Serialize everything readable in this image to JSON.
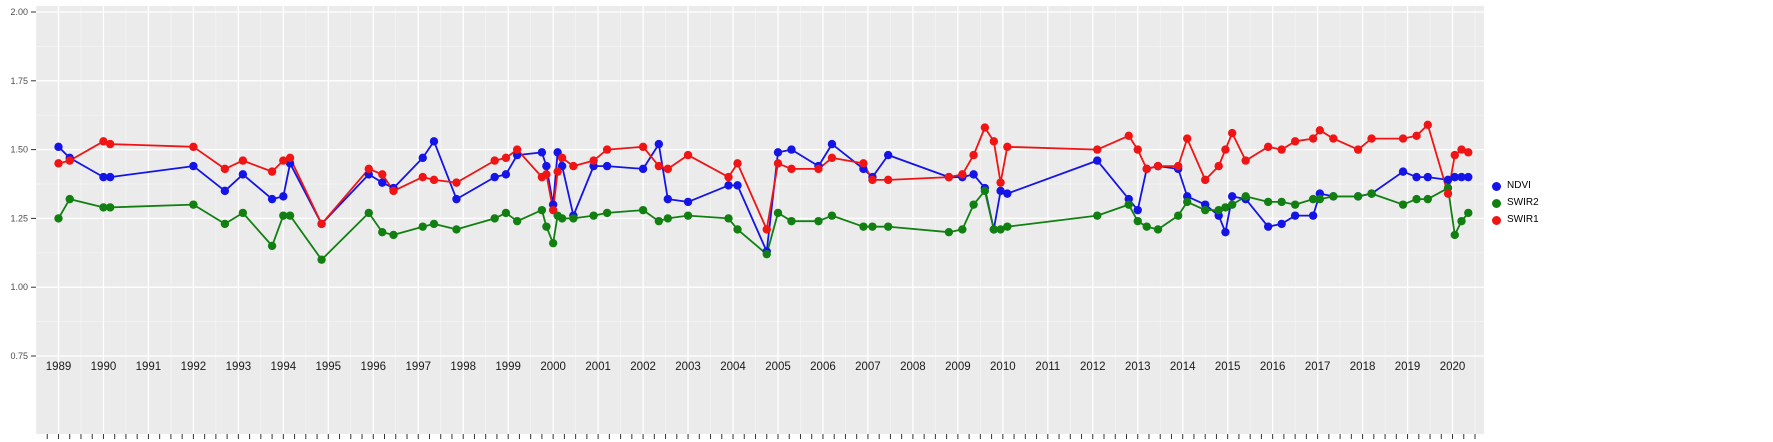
{
  "chart_data": {
    "type": "line",
    "title": "",
    "xlabel": "",
    "ylabel": "",
    "background_color": "#EBEBEB",
    "grid_color": "#FFFFFF",
    "axis_text_color": "#4D4D4D",
    "legend_position": "right",
    "yticklabels": [
      "0.75",
      "1.00",
      "1.25",
      "1.50",
      "1.75",
      "2.00"
    ],
    "yticks": [
      0.75,
      1.0,
      1.25,
      1.5,
      1.75,
      2.0
    ],
    "ylim_labeled": [
      0.75,
      2.0
    ],
    "xticks": [
      1989,
      1990,
      1991,
      1992,
      1993,
      1994,
      1995,
      1996,
      1997,
      1998,
      1999,
      2000,
      2001,
      2002,
      2003,
      2004,
      2005,
      2006,
      2007,
      2008,
      2009,
      2010,
      2011,
      2012,
      2013,
      2014,
      2015,
      2016,
      2017,
      2018,
      2019,
      2020
    ],
    "x": [
      1989.0,
      1989.25,
      1990.0,
      1990.15,
      1992.0,
      1992.7,
      1993.1,
      1993.75,
      1994.0,
      1994.15,
      1994.85,
      1995.9,
      1996.2,
      1996.45,
      1997.1,
      1997.35,
      1997.85,
      1998.7,
      1998.95,
      1999.2,
      1999.75,
      1999.85,
      2000.0,
      2000.1,
      2000.2,
      2000.45,
      2000.9,
      2001.2,
      2002.0,
      2002.35,
      2002.55,
      2003.0,
      2003.9,
      2004.1,
      2004.75,
      2005.0,
      2005.3,
      2005.9,
      2006.2,
      2006.9,
      2007.1,
      2007.45,
      2008.8,
      2009.1,
      2009.35,
      2009.6,
      2009.8,
      2009.95,
      2010.1,
      2012.1,
      2012.8,
      2013.0,
      2013.2,
      2013.45,
      2013.9,
      2014.1,
      2014.5,
      2014.8,
      2014.95,
      2015.1,
      2015.4,
      2015.9,
      2016.2,
      2016.5,
      2016.9,
      2017.05,
      2017.35,
      2017.9,
      2018.2,
      2018.9,
      2019.2,
      2019.45,
      2019.9,
      2020.05,
      2020.2,
      2020.35
    ],
    "series": [
      {
        "name": "NDVI",
        "color": "#1414E8",
        "values": [
          1.51,
          1.47,
          1.4,
          1.4,
          1.44,
          1.35,
          1.41,
          1.32,
          1.33,
          1.45,
          1.23,
          1.41,
          1.38,
          1.36,
          1.47,
          1.53,
          1.32,
          1.4,
          1.41,
          1.48,
          1.49,
          1.44,
          1.3,
          1.49,
          1.44,
          1.26,
          1.44,
          1.44,
          1.43,
          1.52,
          1.32,
          1.31,
          1.37,
          1.37,
          1.13,
          1.49,
          1.5,
          1.44,
          1.52,
          1.43,
          1.4,
          1.48,
          1.4,
          1.4,
          1.41,
          1.36,
          1.21,
          1.35,
          1.34,
          1.46,
          1.32,
          1.28,
          1.43,
          1.44,
          1.43,
          1.33,
          1.3,
          1.26,
          1.2,
          1.33,
          1.32,
          1.22,
          1.23,
          1.26,
          1.26,
          1.34,
          1.33,
          1.33,
          1.34,
          1.42,
          1.4,
          1.4,
          1.39,
          1.4,
          1.4,
          1.4
        ]
      },
      {
        "name": "SWIR2",
        "color": "#118011",
        "values": [
          1.25,
          1.32,
          1.29,
          1.29,
          1.3,
          1.23,
          1.27,
          1.15,
          1.26,
          1.26,
          1.1,
          1.27,
          1.2,
          1.19,
          1.22,
          1.23,
          1.21,
          1.25,
          1.27,
          1.24,
          1.28,
          1.22,
          1.16,
          1.26,
          1.25,
          1.25,
          1.26,
          1.27,
          1.28,
          1.24,
          1.25,
          1.26,
          1.25,
          1.21,
          1.12,
          1.27,
          1.24,
          1.24,
          1.26,
          1.22,
          1.22,
          1.22,
          1.2,
          1.21,
          1.3,
          1.35,
          1.21,
          1.21,
          1.22,
          1.26,
          1.3,
          1.24,
          1.22,
          1.21,
          1.26,
          1.31,
          1.28,
          1.28,
          1.29,
          1.3,
          1.33,
          1.31,
          1.31,
          1.3,
          1.32,
          1.32,
          1.33,
          1.33,
          1.34,
          1.3,
          1.32,
          1.32,
          1.36,
          1.19,
          1.24,
          1.27
        ]
      },
      {
        "name": "SWIR1",
        "color": "#F01414",
        "values": [
          1.45,
          1.46,
          1.53,
          1.52,
          1.51,
          1.43,
          1.46,
          1.42,
          1.46,
          1.47,
          1.23,
          1.43,
          1.41,
          1.35,
          1.4,
          1.39,
          1.38,
          1.46,
          1.47,
          1.5,
          1.4,
          1.41,
          1.28,
          1.42,
          1.47,
          1.44,
          1.46,
          1.5,
          1.51,
          1.44,
          1.43,
          1.48,
          1.4,
          1.45,
          1.21,
          1.45,
          1.43,
          1.43,
          1.47,
          1.45,
          1.39,
          1.39,
          1.4,
          1.41,
          1.48,
          1.58,
          1.53,
          1.38,
          1.51,
          1.5,
          1.55,
          1.5,
          1.43,
          1.44,
          1.44,
          1.54,
          1.39,
          1.44,
          1.5,
          1.56,
          1.46,
          1.51,
          1.5,
          1.53,
          1.54,
          1.57,
          1.54,
          1.5,
          1.54,
          1.54,
          1.55,
          1.59,
          1.34,
          1.48,
          1.5,
          1.49
        ]
      }
    ],
    "legend_entries": [
      "NDVI",
      "SWIR2",
      "SWIR1"
    ]
  }
}
